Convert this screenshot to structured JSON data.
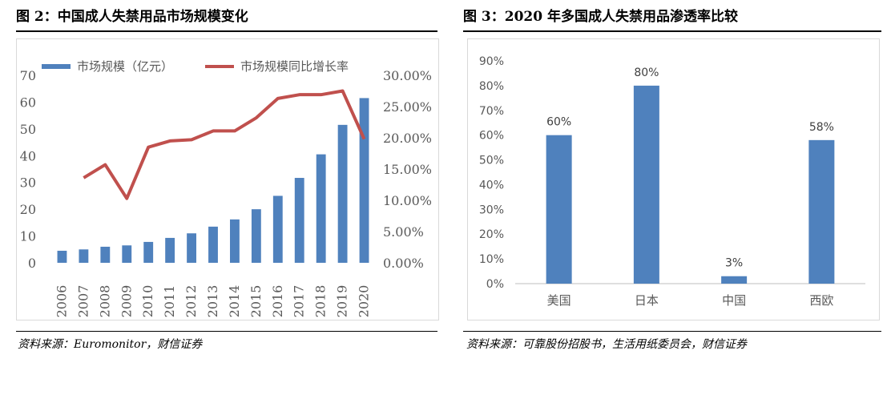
{
  "left": {
    "title": "图 2：中国成人失禁用品市场规模变化",
    "source": "资料来源：Euromonitor，财信证券",
    "chart_data": {
      "type": "bar",
      "categories": [
        "2006",
        "2007",
        "2008",
        "2009",
        "2010",
        "2011",
        "2012",
        "2013",
        "2014",
        "2015",
        "2016",
        "2017",
        "2018",
        "2019",
        "2020"
      ],
      "series": [
        {
          "name": "市场规模（亿元）",
          "type": "bar",
          "axis": "left",
          "color": "#4f81bd",
          "values": [
            4.5,
            5,
            6,
            6.5,
            7.8,
            9.3,
            11,
            13.5,
            16.2,
            20,
            25,
            31.7,
            40.5,
            51.5,
            61.5
          ]
        },
        {
          "name": "市场规模同比增长率",
          "type": "line",
          "axis": "right",
          "color": "#c0504d",
          "values": [
            null,
            0.136,
            0.157,
            0.103,
            0.185,
            0.195,
            0.197,
            0.211,
            0.211,
            0.232,
            0.263,
            0.269,
            0.269,
            0.275,
            0.198
          ]
        }
      ],
      "yLeft": {
        "min": 0,
        "max": 70,
        "step": 10,
        "ticks": [
          "0",
          "10",
          "20",
          "30",
          "40",
          "50",
          "60",
          "70"
        ]
      },
      "yRight": {
        "min": 0,
        "max": 0.3,
        "step": 0.05,
        "ticks": [
          "0.00%",
          "5.00%",
          "10.00%",
          "15.00%",
          "20.00%",
          "25.00%",
          "30.00%"
        ]
      },
      "legend": "top"
    }
  },
  "right": {
    "title": "图 3：2020 年多国成人失禁用品渗透率比较",
    "source": "资料来源：可靠股份招股书，生活用纸委员会，财信证券",
    "chart_data": {
      "type": "bar",
      "categories": [
        "美国",
        "日本",
        "中国",
        "西欧"
      ],
      "values": [
        0.6,
        0.8,
        0.03,
        0.58
      ],
      "labels": [
        "60%",
        "80%",
        "3%",
        "58%"
      ],
      "color": "#4f81bd",
      "y": {
        "min": 0,
        "max": 0.9,
        "step": 0.1,
        "ticks": [
          "0%",
          "10%",
          "20%",
          "30%",
          "40%",
          "50%",
          "60%",
          "70%",
          "80%",
          "90%"
        ]
      }
    }
  }
}
